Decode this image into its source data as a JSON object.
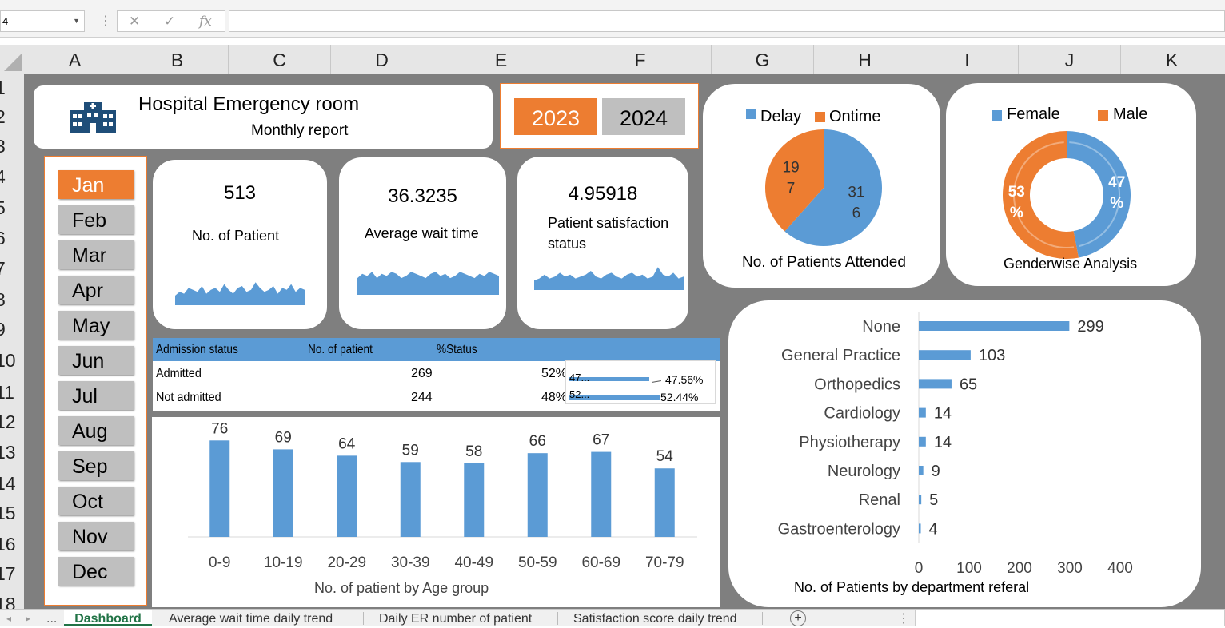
{
  "name_box": "4",
  "formula_bar": {
    "cancel": "✕",
    "enter": "✓",
    "fx": "fx",
    "value": ""
  },
  "columns": [
    "A",
    "B",
    "C",
    "D",
    "E",
    "F",
    "G",
    "H",
    "I",
    "J",
    "K"
  ],
  "rows": [
    "1",
    "2",
    "3",
    "4",
    "5",
    "6",
    "7",
    "8",
    "9",
    "10",
    "11",
    "12",
    "13",
    "14",
    "15",
    "16",
    "17",
    "18"
  ],
  "header": {
    "title": "Hospital Emergency room",
    "subtitle": "Monthly report",
    "icon": "hospital-icon"
  },
  "years": {
    "y2023": "2023",
    "y2024": "2024",
    "active": "2023"
  },
  "months": [
    "Jan",
    "Feb",
    "Mar",
    "Apr",
    "May",
    "Jun",
    "Jul",
    "Aug",
    "Sep",
    "Oct",
    "Nov",
    "Dec"
  ],
  "active_month": "Jan",
  "kpis": {
    "patients": {
      "value": "513",
      "label": "No. of Patient"
    },
    "wait": {
      "value": "36.3235",
      "label": "Average wait time"
    },
    "satisfaction": {
      "value": "4.95918",
      "label1": "Patient satisfaction",
      "label2": "status"
    }
  },
  "admission_table": {
    "headers": [
      "Admission status",
      "No. of patient",
      "%Status"
    ],
    "rows": [
      {
        "status": "Admitted",
        "count": "269",
        "pct": "52%"
      },
      {
        "status": "Not admitted",
        "count": "244",
        "pct": "48%"
      }
    ],
    "mini_bars": [
      {
        "label": "47...",
        "pct_label": "47.56%",
        "value": 47.56
      },
      {
        "label": "52...",
        "pct_label": "52.44%",
        "value": 52.44
      }
    ]
  },
  "colors": {
    "blue": "#5b9bd5",
    "orange": "#ed7d31",
    "sheet_bg": "#7f7f7f",
    "excel_green": "#217346"
  },
  "chart_data": [
    {
      "type": "pie",
      "title": "No. of Patients Attended",
      "legend": [
        "Delay",
        "Ontime"
      ],
      "legend_position": "top",
      "slices": [
        {
          "name": "Delay",
          "value": 316,
          "label_top": "31",
          "label_bot": "6"
        },
        {
          "name": "Ontime",
          "value": 197,
          "label_top": "19",
          "label_bot": "7"
        }
      ]
    },
    {
      "type": "pie",
      "variant": "donut",
      "title": "Genderwise Analysis",
      "legend": [
        "Female",
        "Male"
      ],
      "legend_position": "top",
      "slices": [
        {
          "name": "Female",
          "value": 47,
          "label_top": "47",
          "label_bot": "%"
        },
        {
          "name": "Male",
          "value": 53,
          "label_top": "53",
          "label_bot": "%"
        }
      ]
    },
    {
      "type": "bar",
      "title": "No. of patient by Age group",
      "categories": [
        "0-9",
        "10-19",
        "20-29",
        "30-39",
        "40-49",
        "50-59",
        "60-69",
        "70-79"
      ],
      "values": [
        76,
        69,
        64,
        59,
        58,
        66,
        67,
        54
      ],
      "ylim": [
        0,
        85
      ]
    },
    {
      "type": "bar",
      "orientation": "horizontal",
      "title": "No. of Patients by department referal",
      "categories": [
        "None",
        "General Practice",
        "Orthopedics",
        "Cardiology",
        "Physiotherapy",
        "Neurology",
        "Renal",
        "Gastroenterology"
      ],
      "values": [
        299,
        103,
        65,
        14,
        14,
        9,
        5,
        4
      ],
      "xlim": [
        0,
        400
      ],
      "xticks": [
        "0",
        "100",
        "200",
        "300",
        "400"
      ]
    },
    {
      "type": "area",
      "name": "patients-sparkline",
      "values": [
        5,
        7,
        6,
        9,
        8,
        7,
        10,
        6,
        8,
        9,
        7,
        11,
        8,
        6,
        9,
        10,
        7,
        8,
        12,
        9,
        7,
        8,
        10,
        6,
        9,
        8,
        11,
        7,
        9,
        8
      ]
    },
    {
      "type": "area",
      "name": "wait-sparkline",
      "values": [
        8,
        10,
        9,
        11,
        8,
        10,
        9,
        11,
        10,
        8,
        9,
        11,
        10,
        9,
        8,
        10,
        11,
        9,
        10,
        8,
        9,
        11,
        10,
        9,
        8,
        10,
        9,
        11,
        10,
        9
      ]
    },
    {
      "type": "area",
      "name": "satisfaction-sparkline",
      "values": [
        5,
        6,
        8,
        6,
        7,
        9,
        7,
        8,
        6,
        7,
        8,
        10,
        7,
        6,
        8,
        9,
        7,
        6,
        8,
        9,
        7,
        8,
        6,
        7,
        12,
        8,
        7,
        9,
        6,
        7
      ]
    }
  ],
  "tabs": [
    "...",
    "Dashboard",
    "Average wait time daily trend",
    "Daily ER number of patient",
    "Satisfaction score daily trend"
  ],
  "add_sheet": "+"
}
